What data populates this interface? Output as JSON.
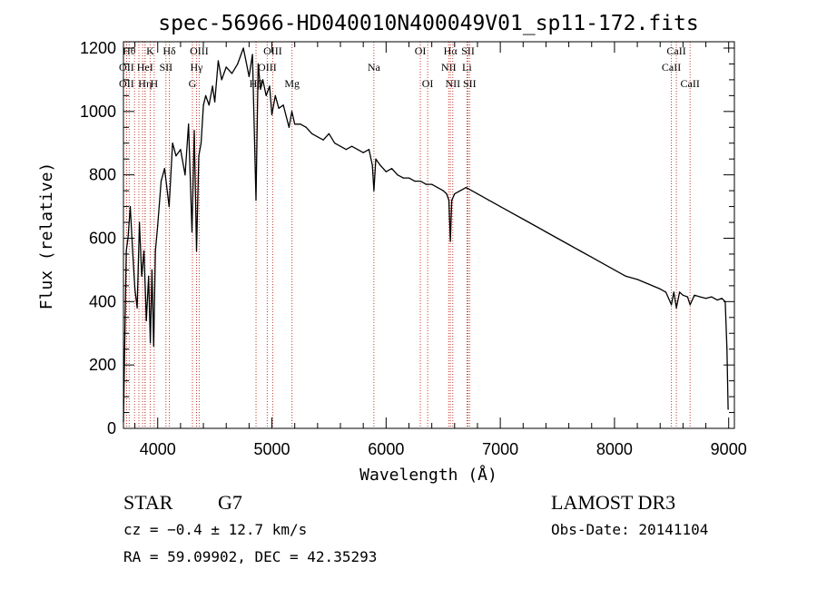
{
  "chart_data": {
    "type": "line",
    "title": "spec-56966-HD040010N400049V01_sp11-172.fits",
    "xlabel": "Wavelength (Å)",
    "ylabel": "Flux (relative)",
    "xlim": [
      3700,
      9050
    ],
    "ylim": [
      0,
      1220
    ],
    "x_ticks": [
      4000,
      5000,
      6000,
      7000,
      8000,
      9000
    ],
    "x_tick_labels": [
      "4000",
      "5000",
      "6000",
      "7000",
      "8000",
      "9000"
    ],
    "y_ticks": [
      0,
      200,
      400,
      600,
      800,
      1000,
      1200
    ],
    "y_tick_labels": [
      "0",
      "200",
      "400",
      "600",
      "800",
      "1000",
      "1200"
    ],
    "grid": false,
    "series": [
      {
        "x": [
          3700,
          3710,
          3725,
          3740,
          3760,
          3780,
          3800,
          3820,
          3840,
          3860,
          3880,
          3900,
          3920,
          3935,
          3950,
          3965,
          3980,
          4000,
          4030,
          4060,
          4100,
          4130,
          4160,
          4200,
          4240,
          4270,
          4300,
          4320,
          4340,
          4360,
          4380,
          4400,
          4420,
          4450,
          4480,
          4500,
          4530,
          4560,
          4600,
          4650,
          4700,
          4750,
          4800,
          4830,
          4861,
          4880,
          4900,
          4920,
          4950,
          4980,
          5000,
          5030,
          5060,
          5100,
          5150,
          5175,
          5200,
          5250,
          5300,
          5350,
          5400,
          5450,
          5500,
          5550,
          5600,
          5650,
          5700,
          5750,
          5800,
          5850,
          5880,
          5893,
          5910,
          5950,
          6000,
          6050,
          6100,
          6150,
          6200,
          6250,
          6300,
          6350,
          6400,
          6450,
          6500,
          6530,
          6550,
          6563,
          6575,
          6600,
          6650,
          6700,
          6750,
          6800,
          6900,
          7000,
          7100,
          7200,
          7300,
          7400,
          7500,
          7600,
          7700,
          7800,
          7900,
          8000,
          8100,
          8200,
          8300,
          8400,
          8450,
          8498,
          8520,
          8542,
          8570,
          8600,
          8640,
          8662,
          8700,
          8750,
          8800,
          8850,
          8900,
          8940,
          8970,
          8985,
          8995
        ],
        "y": [
          20,
          250,
          560,
          600,
          700,
          560,
          440,
          380,
          650,
          480,
          560,
          340,
          480,
          270,
          500,
          260,
          560,
          640,
          780,
          820,
          700,
          900,
          860,
          880,
          800,
          960,
          620,
          940,
          560,
          860,
          900,
          1020,
          1050,
          1020,
          1080,
          1030,
          1160,
          1100,
          1140,
          1120,
          1150,
          1200,
          1110,
          1180,
          720,
          1150,
          1070,
          1100,
          1050,
          1080,
          990,
          1050,
          1010,
          1020,
          950,
          1000,
          960,
          960,
          950,
          930,
          920,
          910,
          930,
          900,
          890,
          880,
          890,
          880,
          870,
          880,
          830,
          750,
          850,
          830,
          810,
          820,
          800,
          790,
          790,
          780,
          780,
          770,
          770,
          760,
          750,
          740,
          720,
          590,
          720,
          740,
          750,
          760,
          750,
          740,
          720,
          700,
          680,
          660,
          640,
          620,
          600,
          580,
          560,
          540,
          520,
          500,
          480,
          470,
          455,
          440,
          430,
          390,
          430,
          380,
          430,
          420,
          415,
          390,
          420,
          415,
          410,
          415,
          405,
          410,
          400,
          250,
          60
        ]
      }
    ],
    "lines": [
      {
        "x": 3750,
        "label": "Hθ",
        "row": 0
      },
      {
        "x": 3727,
        "label": "OII",
        "row": 1
      },
      {
        "x": 3727,
        "label": "OII",
        "row": 2
      },
      {
        "x": 3797,
        "label": "",
        "row": 0
      },
      {
        "x": 3835,
        "label": "",
        "row": 0
      },
      {
        "x": 3868,
        "label": "",
        "row": 0
      },
      {
        "x": 3889,
        "label": "HeI",
        "row": 1
      },
      {
        "x": 3889,
        "label": "Hη",
        "row": 2
      },
      {
        "x": 3934,
        "label": "K",
        "row": 0
      },
      {
        "x": 3969,
        "label": "H",
        "row": 2
      },
      {
        "x": 4072,
        "label": "SII",
        "row": 1
      },
      {
        "x": 4102,
        "label": "Hδ",
        "row": 0
      },
      {
        "x": 4304,
        "label": "G",
        "row": 2
      },
      {
        "x": 4340,
        "label": "Hγ",
        "row": 1
      },
      {
        "x": 4363,
        "label": "OIII",
        "row": 0
      },
      {
        "x": 4861,
        "label": "Hβ",
        "row": 2
      },
      {
        "x": 4959,
        "label": "OIII",
        "row": 1
      },
      {
        "x": 5007,
        "label": "OIII",
        "row": 0
      },
      {
        "x": 5176,
        "label": "Mg",
        "row": 2
      },
      {
        "x": 5893,
        "label": "Na",
        "row": 1
      },
      {
        "x": 6300,
        "label": "OI",
        "row": 0
      },
      {
        "x": 6364,
        "label": "OI",
        "row": 2
      },
      {
        "x": 6548,
        "label": "NII",
        "row": 1
      },
      {
        "x": 6563,
        "label": "Hα",
        "row": 0
      },
      {
        "x": 6584,
        "label": "NII",
        "row": 2
      },
      {
        "x": 6708,
        "label": "Li",
        "row": 1
      },
      {
        "x": 6717,
        "label": "SII",
        "row": 0
      },
      {
        "x": 6731,
        "label": "SII",
        "row": 2
      },
      {
        "x": 8498,
        "label": "CaII",
        "row": 1
      },
      {
        "x": 8542,
        "label": "CaII",
        "row": 0
      },
      {
        "x": 8662,
        "label": "CaII",
        "row": 2
      }
    ]
  },
  "info": {
    "class": "STAR",
    "subclass": "G7",
    "survey": "LAMOST DR3",
    "cz": "cz = −0.4 ± 12.7 km/s",
    "obs_date": "Obs-Date: 20141104",
    "radec": "RA =  59.09902, DEC =  42.35293"
  },
  "colors": {
    "line_marker": "#c0392b",
    "spectrum": "#000000",
    "axis": "#000000"
  }
}
